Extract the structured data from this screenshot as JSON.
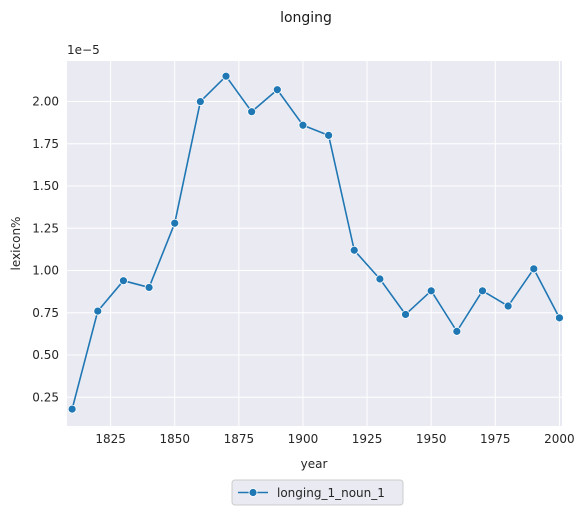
{
  "chart_data": {
    "type": "line",
    "title": "longing",
    "xlabel": "year",
    "ylabel": "lexicon%",
    "y_offset_label": "1e−5",
    "xlim": [
      1808,
      2001
    ],
    "ylim": [
      0.08,
      2.24
    ],
    "x_ticks": [
      1825,
      1850,
      1875,
      1900,
      1925,
      1950,
      1975,
      2000
    ],
    "y_ticks": [
      0.25,
      0.5,
      0.75,
      1.0,
      1.25,
      1.5,
      1.75,
      2.0
    ],
    "y_tick_labels": [
      "0.25",
      "0.50",
      "0.75",
      "1.00",
      "1.25",
      "1.50",
      "1.75",
      "2.00"
    ],
    "grid": true,
    "legend_position": "bottom-center",
    "background_color": "#eaeaf2",
    "grid_color": "#ffffff",
    "line_color": "#1f77b4",
    "series": [
      {
        "name": "longing_1_noun_1",
        "x": [
          1810,
          1820,
          1830,
          1840,
          1850,
          1860,
          1870,
          1880,
          1890,
          1900,
          1910,
          1920,
          1930,
          1940,
          1950,
          1960,
          1970,
          1980,
          1990,
          2000
        ],
        "y": [
          0.18,
          0.76,
          0.94,
          0.9,
          1.28,
          2.0,
          2.15,
          1.94,
          2.07,
          1.86,
          1.8,
          1.12,
          0.95,
          0.74,
          0.88,
          0.64,
          0.88,
          0.79,
          1.01,
          0.72
        ]
      }
    ]
  }
}
